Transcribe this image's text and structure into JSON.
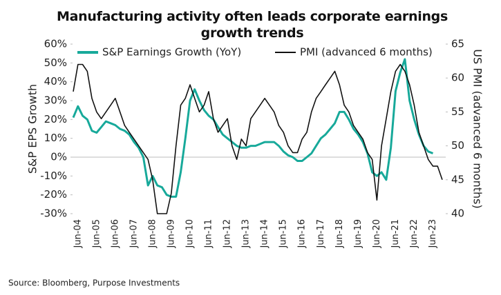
{
  "chart_data": {
    "type": "line",
    "title": "Manufacturing activity often leads corporate earnings growth trends",
    "y_label": "S&P EPS Growth",
    "y2_label": "US PMI (advanced 6 months)",
    "source": "Source: Bloomberg, Purpose Investments",
    "categories": [
      null,
      "Jun-04",
      null,
      null,
      null,
      "Jun-05",
      null,
      null,
      null,
      "Jun-06",
      null,
      null,
      null,
      "Jun-07",
      null,
      null,
      null,
      "Jun-08",
      null,
      null,
      null,
      "Jun-09",
      null,
      null,
      null,
      "Jun-10",
      null,
      null,
      null,
      "Jun-11",
      null,
      null,
      null,
      "Jun-12",
      null,
      null,
      null,
      "Jun-13",
      null,
      null,
      null,
      "Jun-14",
      null,
      null,
      null,
      "Jun-15",
      null,
      null,
      null,
      "Jun-16",
      null,
      null,
      null,
      "Jun-17",
      null,
      null,
      null,
      "Jun-18",
      null,
      null,
      null,
      "Jun-19",
      null,
      null,
      null,
      "Jun-20",
      null,
      null,
      null,
      "Jun-21",
      null,
      null,
      null,
      "Jun-22",
      null,
      null,
      null,
      "Jun-23",
      null,
      null
    ],
    "series": [
      {
        "name": "S&P Earnings Growth (YoY)",
        "color": "#17a99a",
        "axis": "y",
        "values": [
          21,
          27,
          22,
          20,
          14,
          13,
          16,
          19,
          18,
          17,
          15,
          14,
          12,
          8,
          5,
          0,
          -15,
          -10,
          -15,
          -16,
          -20,
          -21,
          -21,
          -8,
          10,
          30,
          36,
          30,
          25,
          22,
          20,
          16,
          12,
          10,
          8,
          6,
          5,
          5,
          6,
          6,
          7,
          8,
          8,
          8,
          6,
          3,
          1,
          0,
          -2,
          -2,
          0,
          2,
          6,
          10,
          12,
          15,
          18,
          24,
          24,
          20,
          15,
          12,
          8,
          2,
          -8,
          -10,
          -8,
          -12,
          5,
          35,
          45,
          52,
          30,
          20,
          12,
          6,
          3,
          2,
          null,
          null
        ]
      },
      {
        "name": "PMI (advanced 6 months)",
        "color": "#111111",
        "axis": "y2",
        "values": [
          58,
          62,
          62,
          61,
          57,
          55,
          54,
          55,
          56,
          57,
          55,
          53,
          52,
          51,
          50,
          49,
          48,
          45,
          40,
          40,
          40,
          43,
          50,
          56,
          57,
          59,
          57,
          55,
          56,
          58,
          54,
          52,
          53,
          54,
          50,
          48,
          51,
          50,
          54,
          55,
          56,
          57,
          56,
          55,
          53,
          52,
          50,
          49,
          49,
          51,
          52,
          55,
          57,
          58,
          59,
          60,
          61,
          59,
          56,
          55,
          53,
          52,
          51,
          49,
          48,
          42,
          50,
          54,
          58,
          61,
          62,
          61,
          59,
          56,
          52,
          50,
          48,
          47,
          47,
          45
        ]
      }
    ],
    "ylim": [
      -30,
      60
    ],
    "yticks": [
      {
        "value": -30,
        "label": "-30%"
      },
      {
        "value": -20,
        "label": "-20%"
      },
      {
        "value": -10,
        "label": "-10%"
      },
      {
        "value": 0,
        "label": "0%"
      },
      {
        "value": 10,
        "label": "10%"
      },
      {
        "value": 20,
        "label": "20%"
      },
      {
        "value": 30,
        "label": "30%"
      },
      {
        "value": 40,
        "label": "40%"
      },
      {
        "value": 50,
        "label": "50%"
      },
      {
        "value": 60,
        "label": "60%"
      }
    ],
    "y2lim": [
      40,
      65
    ],
    "y2ticks": [
      40,
      45,
      50,
      55,
      60,
      65
    ],
    "zero_line": 0,
    "legend": "top"
  }
}
